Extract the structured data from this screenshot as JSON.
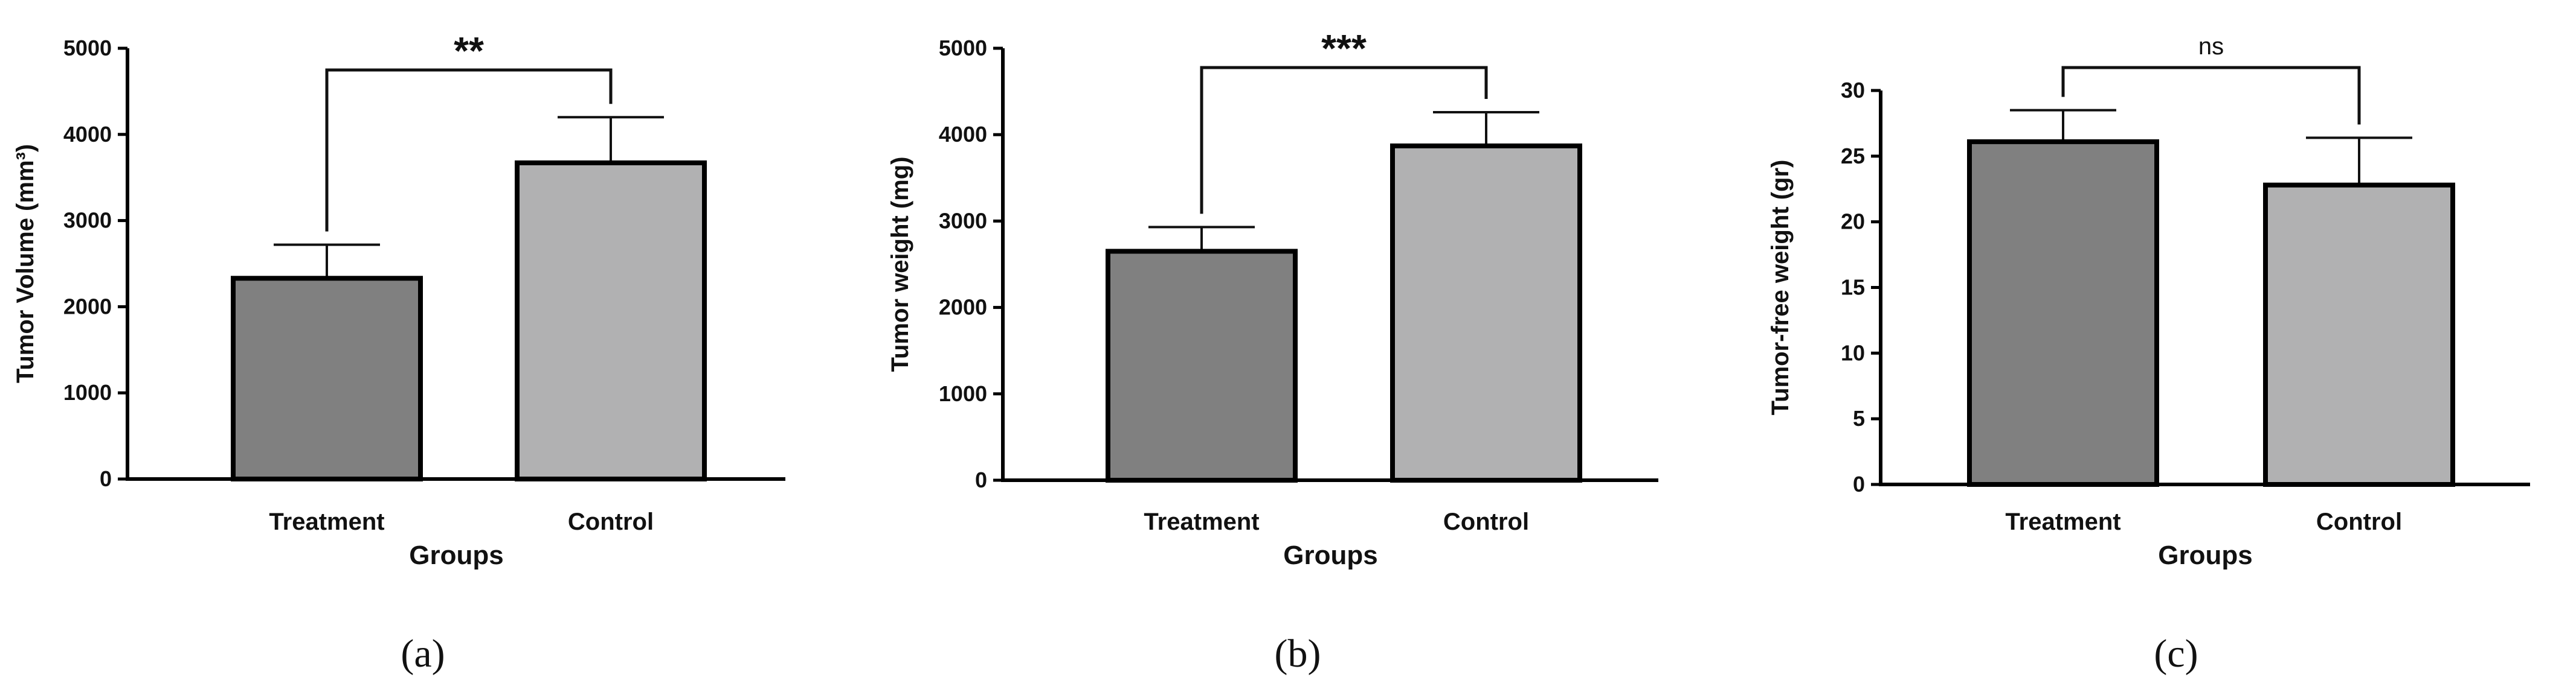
{
  "chart_data": [
    {
      "type": "bar",
      "panel_label": "a",
      "categories": [
        "Treatment",
        "Control"
      ],
      "values": [
        2330,
        3670
      ],
      "error_upper": [
        2720,
        4200
      ],
      "colors": [
        "#808080",
        "#b1b1b2"
      ],
      "xlabel": "Groups",
      "ylabel": "Tumor Volume (mm³)",
      "ylim": [
        0,
        5000
      ],
      "yticks": [
        "0",
        "1000",
        "2000",
        "3000",
        "4000",
        "5000"
      ],
      "significance": "**"
    },
    {
      "type": "bar",
      "panel_label": "b",
      "categories": [
        "Treatment",
        "Control"
      ],
      "values": [
        2650,
        3870
      ],
      "error_upper": [
        2930,
        4260
      ],
      "colors": [
        "#808080",
        "#b1b1b2"
      ],
      "xlabel": "Groups",
      "ylabel": "Tumor weight (mg)",
      "ylim": [
        0,
        5000
      ],
      "yticks": [
        "0",
        "1000",
        "2000",
        "3000",
        "4000",
        "5000"
      ],
      "significance": "***"
    },
    {
      "type": "bar",
      "panel_label": "c",
      "categories": [
        "Treatment",
        "Control"
      ],
      "values": [
        26.1,
        22.8
      ],
      "error_upper": [
        28.5,
        26.4
      ],
      "colors": [
        "#808080",
        "#b1b1b2"
      ],
      "xlabel": "Groups",
      "ylabel": "Tumor-free weight (gr)",
      "ylim": [
        0,
        30
      ],
      "yticks": [
        "0",
        "5",
        "10",
        "15",
        "20",
        "25",
        "30"
      ],
      "significance": "ns"
    }
  ],
  "panel_labels": [
    "(a)",
    "(b)",
    "(c)"
  ]
}
